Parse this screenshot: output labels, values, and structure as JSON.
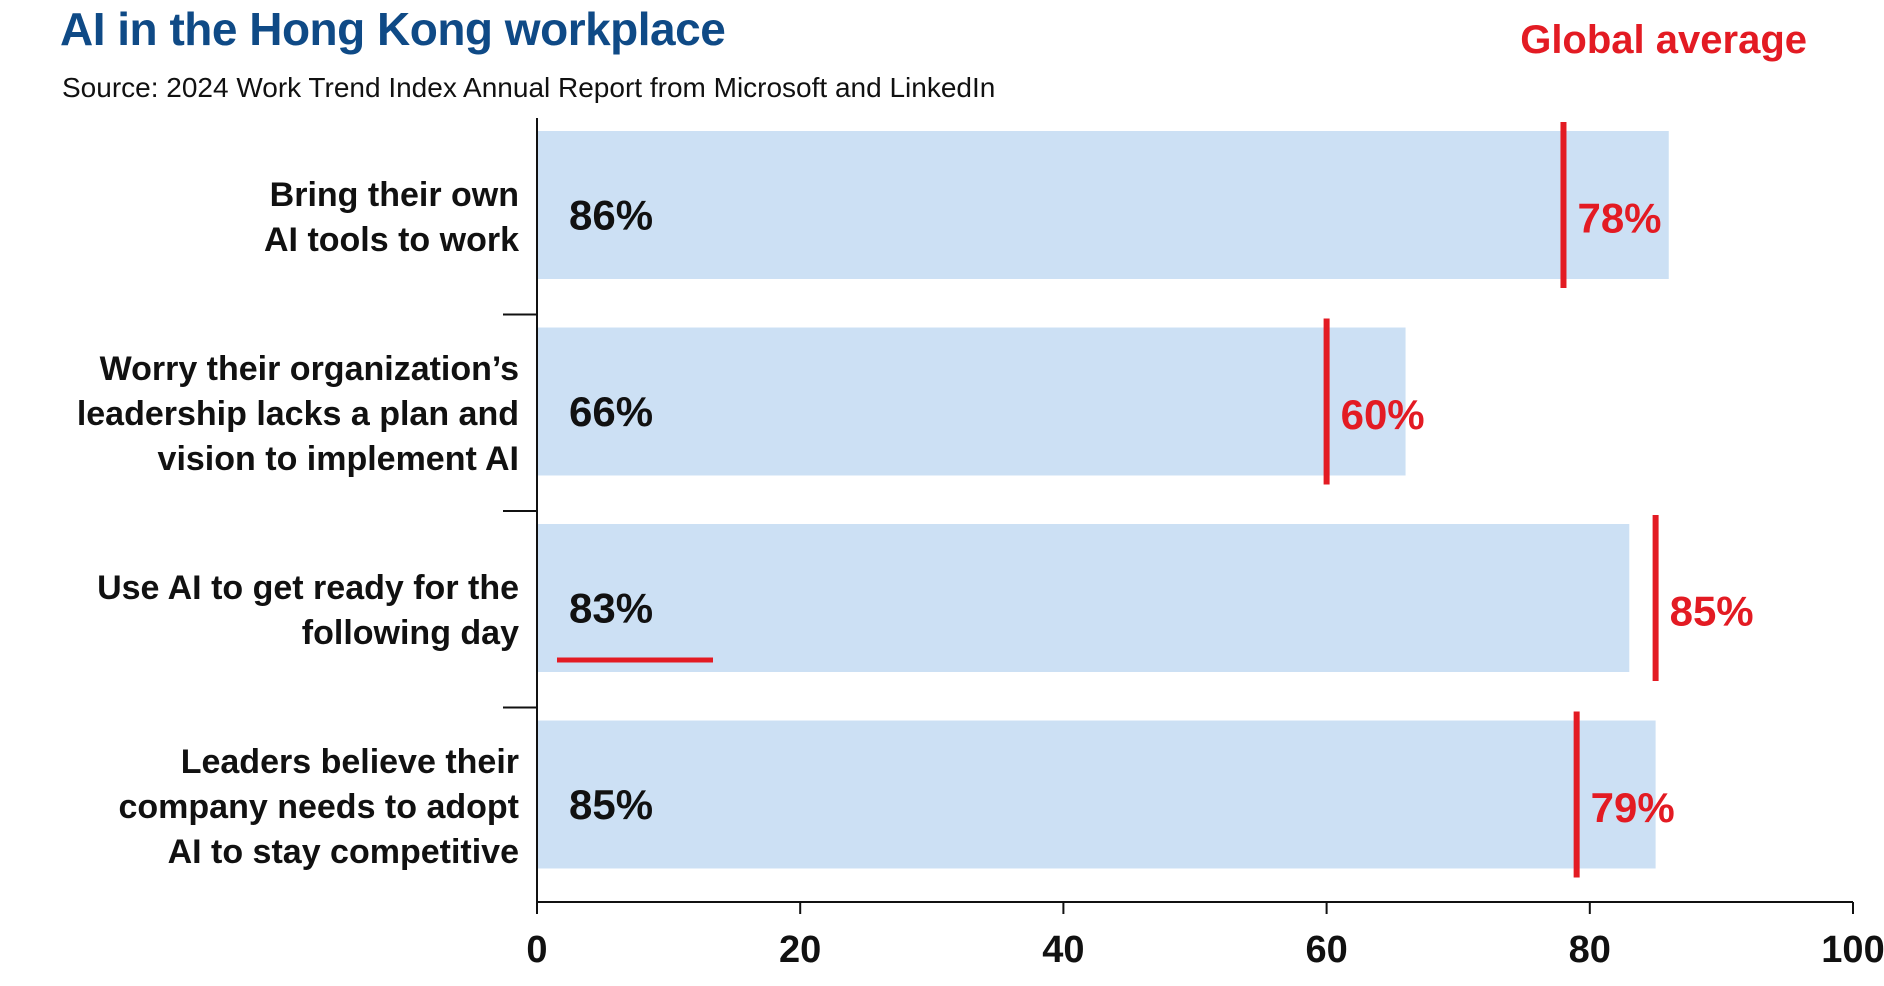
{
  "colors": {
    "bar": "#cce0f4",
    "global": "#e31b23",
    "title": "#0f4a86",
    "axis": "#111111"
  },
  "chart_data": {
    "type": "bar",
    "orientation": "horizontal",
    "title": "AI in the Hong Kong workplace",
    "subtitle": "Source: 2024 Work Trend Index Annual Report from Microsoft and LinkedIn",
    "legend": {
      "label": "Global average",
      "placement": "top-right"
    },
    "xlim": [
      0,
      100
    ],
    "xticks": [
      0,
      20,
      40,
      60,
      80,
      100
    ],
    "categories": [
      [
        "Bring their own",
        "AI tools to work"
      ],
      [
        "Worry their organization’s",
        "leadership lacks a plan and",
        "vision to implement AI"
      ],
      [
        "Use AI to get ready for the",
        "following day"
      ],
      [
        "Leaders believe their",
        "company needs to adopt",
        "AI to stay competitive"
      ]
    ],
    "series": [
      {
        "values": [
          86,
          66,
          83,
          85
        ],
        "labels": [
          "86%",
          "66%",
          "83%",
          "85%"
        ]
      },
      {
        "name": "Global average",
        "values": [
          78,
          60,
          85,
          79
        ],
        "labels": [
          "78%",
          "60%",
          "85%",
          "79%"
        ]
      }
    ]
  }
}
